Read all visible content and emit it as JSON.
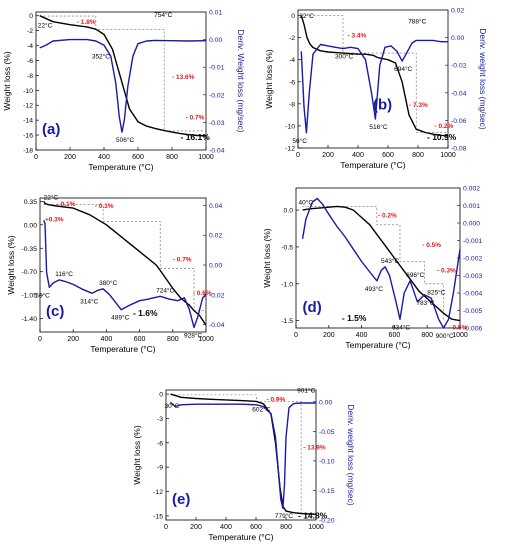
{
  "chart_data": [
    {
      "type": "line",
      "panel_label": "(a)",
      "xlabel": "Temperature (°C)",
      "ylabel": "Weight loss (%)",
      "y2label": "Deriv. Weight loss (mg/sec)",
      "xlim": [
        0,
        1000
      ],
      "xticks": [
        "0",
        "200",
        "400",
        "600",
        "800",
        "1000"
      ],
      "ylim": [
        -18,
        0.5
      ],
      "yticks": [
        "0",
        "-2",
        "-4",
        "-6",
        "-8",
        "-10",
        "-12",
        "-14",
        "-16",
        "-18"
      ],
      "y2lim": [
        -0.04,
        0.01
      ],
      "y2ticks": [
        "0.01",
        "0.00",
        "-0.01",
        "-0.02",
        "-0.03",
        "-0.04"
      ],
      "series": [
        {
          "axis": "left",
          "color": "#000000",
          "x": [
            22,
            100,
            200,
            300,
            352,
            400,
            450,
            500,
            550,
            600,
            650,
            700,
            754,
            800,
            850,
            900,
            950,
            1000
          ],
          "y": [
            0,
            -0.8,
            -1.2,
            -1.5,
            -1.8,
            -2.5,
            -4.5,
            -8.5,
            -12.5,
            -14.2,
            -14.8,
            -15.1,
            -15.4,
            -15.6,
            -15.8,
            -15.95,
            -16.05,
            -16.1
          ]
        },
        {
          "axis": "right",
          "color": "#1a1aa8",
          "x": [
            22,
            60,
            100,
            200,
            300,
            352,
            400,
            440,
            470,
            490,
            506,
            520,
            540,
            570,
            600,
            650,
            700,
            800,
            900,
            1000
          ],
          "y": [
            -0.003,
            -0.002,
            -0.0005,
            0.0,
            0.0,
            -0.0005,
            -0.002,
            -0.006,
            -0.016,
            -0.028,
            -0.0335,
            -0.029,
            -0.017,
            -0.006,
            -0.0015,
            -0.0005,
            -0.0003,
            -0.0004,
            -0.0005,
            -0.0004
          ]
        }
      ],
      "annotations": {
        "temps": [
          "22°C",
          "352°C",
          "506°C",
          "754°C"
        ],
        "losses": [
          "- 1.8%",
          "- 13.6%",
          "- 0.7%"
        ],
        "total": "- 16.1%"
      }
    },
    {
      "type": "line",
      "panel_label": "(b)",
      "xlabel": "Temperature (°C)",
      "ylabel": "Weight loss (%)",
      "y2label": "Deriv. weight loss (mg/sec)",
      "xlim": [
        0,
        1000
      ],
      "xticks": [
        "0",
        "200",
        "400",
        "600",
        "800",
        "1000"
      ],
      "ylim": [
        -12,
        0.5
      ],
      "yticks": [
        "0",
        "-2",
        "-4",
        "-6",
        "-8",
        "-10",
        "-12"
      ],
      "y2lim": [
        -0.08,
        0.02
      ],
      "y2ticks": [
        "0.02",
        "0.00",
        "-0.02",
        "-0.04",
        "-0.06",
        "-0.08"
      ],
      "series": [
        {
          "axis": "left",
          "color": "#000000",
          "x": [
            22,
            40,
            60,
            80,
            100,
            150,
            200,
            300,
            400,
            450,
            500,
            530,
            560,
            600,
            650,
            694,
            740,
            788,
            850,
            900,
            950,
            1000
          ],
          "y": [
            0,
            -0.8,
            -2.0,
            -2.6,
            -2.9,
            -3.2,
            -3.3,
            -3.4,
            -3.5,
            -3.5,
            -3.6,
            -3.8,
            -3.9,
            -4.0,
            -4.3,
            -6.0,
            -9.0,
            -10.3,
            -10.6,
            -10.75,
            -10.85,
            -10.9
          ]
        },
        {
          "axis": "right",
          "color": "#1a1aa8",
          "x": [
            22,
            40,
            56,
            75,
            100,
            150,
            200,
            250,
            300,
            350,
            400,
            450,
            490,
            516,
            545,
            580,
            620,
            660,
            694,
            720,
            760,
            788,
            850,
            900,
            950,
            1000
          ],
          "y": [
            -0.01,
            -0.05,
            -0.069,
            -0.04,
            -0.012,
            -0.005,
            -0.006,
            -0.007,
            -0.008,
            -0.007,
            -0.008,
            -0.016,
            -0.04,
            -0.059,
            -0.02,
            -0.007,
            -0.006,
            -0.01,
            -0.017,
            -0.012,
            -0.004,
            -0.002,
            -0.002,
            -0.002,
            -0.003,
            -0.003
          ]
        }
      ],
      "annotations": {
        "temps": [
          "22°C",
          "56°C",
          "300°C",
          "516°C",
          "694°C",
          "788°C"
        ],
        "losses": [
          "- 3.4%",
          "- 7.3%",
          "- 0.2%"
        ],
        "total": "- 10.9%"
      }
    },
    {
      "type": "line",
      "panel_label": "(c)",
      "xlabel": "Temperature (°C)",
      "ylabel": "Weight loss (%)",
      "y2label": "",
      "xlim": [
        0,
        1000
      ],
      "xticks": [
        "0",
        "200",
        "400",
        "600",
        "800",
        "1000"
      ],
      "ylim": [
        -1.6,
        0.4
      ],
      "yticks": [
        "0.35",
        "0.00",
        "-0.35",
        "-0.70",
        "-1.05",
        "-1.40"
      ],
      "y2lim": [
        -0.045,
        0.045
      ],
      "y2ticks": [
        "0.04",
        "0.02",
        "0.00",
        "-0.02",
        "-0.04"
      ],
      "series": [
        {
          "axis": "left",
          "color": "#000000",
          "x": [
            22,
            30,
            50,
            100,
            200,
            300,
            400,
            500,
            600,
            700,
            724,
            800,
            850,
            900,
            928,
            960,
            1000
          ],
          "y": [
            0.35,
            0.32,
            0.3,
            0.28,
            0.25,
            0.15,
            0.0,
            -0.2,
            -0.4,
            -0.6,
            -0.68,
            -0.95,
            -1.1,
            -1.2,
            -1.28,
            -1.35,
            -1.5
          ]
        },
        {
          "axis": "right",
          "color": "#1a1aa8",
          "x": [
            22,
            30,
            40,
            56,
            80,
            116,
            150,
            200,
            250,
            314,
            350,
            380,
            420,
            489,
            540,
            600,
            650,
            724,
            780,
            830,
            870,
            900,
            928,
            950,
            980,
            1000
          ],
          "y": [
            0.03,
            0.028,
            -0.005,
            -0.015,
            -0.012,
            -0.01,
            -0.011,
            -0.013,
            -0.016,
            -0.019,
            -0.017,
            -0.016,
            -0.02,
            -0.03,
            -0.027,
            -0.024,
            -0.023,
            -0.021,
            -0.023,
            -0.024,
            -0.022,
            -0.03,
            -0.042,
            -0.035,
            -0.022,
            -0.02
          ]
        }
      ],
      "annotations": {
        "temps": [
          "22°C",
          "56°C",
          "116°C",
          "314°C",
          "380°C",
          "489°C",
          "724°C",
          "928°C"
        ],
        "losses": [
          "+0.3%",
          "- 0.1%",
          "- 0.3%",
          "- 0.7%",
          "- 0.6%"
        ],
        "total": "- 1.6%"
      }
    },
    {
      "type": "line",
      "panel_label": "(d)",
      "xlabel": "Temperature (°C)",
      "ylabel": "Weight loss (%)",
      "y2label": "",
      "xlim": [
        0,
        1000
      ],
      "xticks": [
        "0",
        "200",
        "400",
        "600",
        "800",
        "1000"
      ],
      "ylim": [
        -1.6,
        0.3
      ],
      "yticks": [
        "0.0",
        "-0.5",
        "-1.0",
        "-1.5"
      ],
      "y2lim": [
        -0.006,
        0.002
      ],
      "y2ticks": [
        "0.002",
        "0.001",
        "0.000",
        "-0.001",
        "-0.002",
        "-0.003",
        "-0.004",
        "-0.005",
        "-0.006"
      ],
      "series": [
        {
          "axis": "left",
          "color": "#000000",
          "x": [
            40,
            60,
            100,
            150,
            200,
            250,
            300,
            350,
            400,
            450,
            500,
            550,
            600,
            650,
            700,
            750,
            800,
            850,
            900,
            950,
            1000
          ],
          "y": [
            0.0,
            0.01,
            0.02,
            0.03,
            0.04,
            0.05,
            0.04,
            0.0,
            -0.1,
            -0.2,
            -0.35,
            -0.5,
            -0.65,
            -0.8,
            -0.95,
            -1.1,
            -1.2,
            -1.3,
            -1.4,
            -1.48,
            -1.5
          ]
        },
        {
          "axis": "right",
          "color": "#1a1aa8",
          "x": [
            40,
            60,
            100,
            130,
            160,
            200,
            250,
            300,
            350,
            400,
            450,
            493,
            520,
            543,
            570,
            610,
            634,
            660,
            696,
            740,
            783,
            825,
            870,
            900,
            930,
            960,
            1000
          ],
          "y": [
            -0.0009,
            0.0002,
            0.0012,
            0.0014,
            0.0011,
            0.0005,
            -0.0002,
            -0.0008,
            -0.0015,
            -0.0022,
            -0.0028,
            -0.0033,
            -0.0027,
            -0.0025,
            -0.003,
            -0.0045,
            -0.0055,
            -0.004,
            -0.0033,
            -0.0045,
            -0.0041,
            -0.0043,
            -0.0055,
            -0.006,
            -0.0055,
            -0.004,
            -0.0015
          ]
        }
      ],
      "annotations": {
        "temps": [
          "40°C",
          "493°C",
          "543°C",
          "634°C",
          "696°C",
          "783°C",
          "825°C",
          "900°C"
        ],
        "losses": [
          "- 0.2%",
          "- 0.5%",
          "- 0.3%",
          "- 0.5%"
        ],
        "total": "- 1.5%"
      }
    },
    {
      "type": "line",
      "panel_label": "(e)",
      "xlabel": "Temperature (°C)",
      "ylabel": "Weight loss (%)",
      "y2label": "Deriv. weight loss (mg/sec)",
      "xlim": [
        0,
        1000
      ],
      "xticks": [
        "0",
        "200",
        "400",
        "600",
        "800",
        "1000"
      ],
      "ylim": [
        -15.5,
        0.5
      ],
      "yticks": [
        "0",
        "-3",
        "-6",
        "-9",
        "-12",
        "-15"
      ],
      "y2lim": [
        -0.2,
        0.02
      ],
      "y2ticks": [
        "0.00",
        "-0.05",
        "-0.10",
        "-0.15",
        "-0.20"
      ],
      "series": [
        {
          "axis": "left",
          "color": "#000000",
          "x": [
            30,
            100,
            200,
            300,
            400,
            500,
            602,
            650,
            700,
            730,
            760,
            779,
            800,
            850,
            901,
            950,
            1000
          ],
          "y": [
            0,
            -0.4,
            -0.55,
            -0.65,
            -0.72,
            -0.8,
            -0.9,
            -1.2,
            -2.5,
            -6.0,
            -11.5,
            -13.8,
            -14.4,
            -14.6,
            -14.7,
            -14.75,
            -14.8
          ]
        },
        {
          "axis": "right",
          "color": "#1a1aa8",
          "x": [
            30,
            60,
            100,
            200,
            300,
            400,
            500,
            602,
            650,
            700,
            730,
            750,
            765,
            779,
            790,
            800,
            820,
            850,
            901,
            950,
            1000
          ],
          "y": [
            -0.001,
            -0.008,
            -0.005,
            -0.004,
            -0.004,
            -0.004,
            -0.004,
            -0.005,
            -0.008,
            -0.02,
            -0.06,
            -0.12,
            -0.165,
            -0.18,
            -0.14,
            -0.06,
            -0.01,
            -0.003,
            -0.002,
            -0.002,
            -0.002
          ]
        }
      ],
      "annotations": {
        "temps": [
          "30°C",
          "602°C",
          "779°C",
          "901°C"
        ],
        "losses": [
          "- 0.9%",
          "- 13.9%"
        ],
        "total": "- 14.8%"
      }
    }
  ]
}
